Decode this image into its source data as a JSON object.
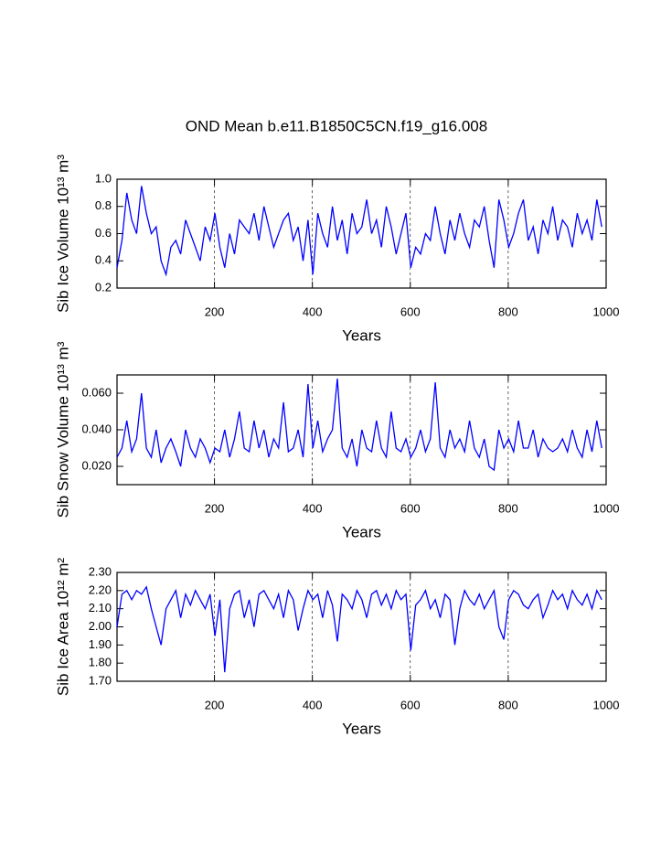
{
  "chart_data": [
    {
      "type": "line",
      "title": "OND Mean b.e11.B1850C5CN.f19_g16.008",
      "x_label": "Years",
      "y_label": "Sib Ice Volume 10¹³ m³",
      "xlim": [
        1,
        1000
      ],
      "xticks": [
        200,
        400,
        600,
        800,
        1000
      ],
      "ylim": [
        0.2,
        1.0
      ],
      "yticks": [
        0.2,
        0.4,
        0.6,
        0.8,
        {
          "value": 1.0,
          "label": "1.0"
        }
      ],
      "grid": true,
      "x": [
        1,
        11,
        21,
        31,
        41,
        51,
        61,
        71,
        81,
        91,
        101,
        111,
        121,
        131,
        141,
        151,
        161,
        171,
        181,
        191,
        201,
        211,
        221,
        231,
        241,
        251,
        261,
        271,
        281,
        291,
        301,
        311,
        321,
        331,
        341,
        351,
        361,
        371,
        381,
        391,
        401,
        411,
        421,
        431,
        441,
        451,
        461,
        471,
        481,
        491,
        501,
        511,
        521,
        531,
        541,
        551,
        561,
        571,
        581,
        591,
        601,
        611,
        621,
        631,
        641,
        651,
        661,
        671,
        681,
        691,
        701,
        711,
        721,
        731,
        741,
        751,
        761,
        771,
        781,
        791,
        801,
        811,
        821,
        831,
        841,
        851,
        861,
        871,
        881,
        891,
        901,
        911,
        921,
        931,
        941,
        951,
        961,
        971,
        981,
        991
      ],
      "series": [
        {
          "color": "#0000ff",
          "values": [
            0.35,
            0.55,
            0.9,
            0.7,
            0.6,
            0.95,
            0.75,
            0.6,
            0.65,
            0.4,
            0.3,
            0.5,
            0.55,
            0.45,
            0.7,
            0.6,
            0.5,
            0.4,
            0.65,
            0.55,
            0.75,
            0.5,
            0.35,
            0.6,
            0.45,
            0.7,
            0.65,
            0.6,
            0.75,
            0.55,
            0.8,
            0.65,
            0.5,
            0.6,
            0.7,
            0.75,
            0.55,
            0.65,
            0.4,
            0.7,
            0.3,
            0.75,
            0.6,
            0.5,
            0.8,
            0.55,
            0.7,
            0.45,
            0.75,
            0.6,
            0.65,
            0.85,
            0.6,
            0.7,
            0.5,
            0.8,
            0.65,
            0.45,
            0.6,
            0.75,
            0.35,
            0.5,
            0.45,
            0.6,
            0.55,
            0.8,
            0.6,
            0.45,
            0.7,
            0.55,
            0.75,
            0.6,
            0.5,
            0.7,
            0.65,
            0.8,
            0.55,
            0.35,
            0.85,
            0.7,
            0.5,
            0.6,
            0.75,
            0.85,
            0.55,
            0.65,
            0.45,
            0.7,
            0.6,
            0.8,
            0.55,
            0.7,
            0.65,
            0.5,
            0.75,
            0.6,
            0.7,
            0.55,
            0.85,
            0.65
          ]
        }
      ]
    },
    {
      "type": "line",
      "x_label": "Years",
      "y_label": "Sib Snow Volume 10¹³ m³",
      "xlim": [
        1,
        1000
      ],
      "xticks": [
        200,
        400,
        600,
        800,
        1000
      ],
      "ylim": [
        0.01,
        0.07
      ],
      "yticks": [
        {
          "value": 0.02,
          "label": "0.020"
        },
        {
          "value": 0.04,
          "label": "0.040"
        },
        {
          "value": 0.06,
          "label": "0.060"
        }
      ],
      "grid": true,
      "x": [
        1,
        11,
        21,
        31,
        41,
        51,
        61,
        71,
        81,
        91,
        101,
        111,
        121,
        131,
        141,
        151,
        161,
        171,
        181,
        191,
        201,
        211,
        221,
        231,
        241,
        251,
        261,
        271,
        281,
        291,
        301,
        311,
        321,
        331,
        341,
        351,
        361,
        371,
        381,
        391,
        401,
        411,
        421,
        431,
        441,
        451,
        461,
        471,
        481,
        491,
        501,
        511,
        521,
        531,
        541,
        551,
        561,
        571,
        581,
        591,
        601,
        611,
        621,
        631,
        641,
        651,
        661,
        671,
        681,
        691,
        701,
        711,
        721,
        731,
        741,
        751,
        761,
        771,
        781,
        791,
        801,
        811,
        821,
        831,
        841,
        851,
        861,
        871,
        881,
        891,
        901,
        911,
        921,
        931,
        941,
        951,
        961,
        971,
        981,
        991
      ],
      "series": [
        {
          "color": "#0000ff",
          "values": [
            0.025,
            0.03,
            0.045,
            0.028,
            0.035,
            0.06,
            0.03,
            0.025,
            0.04,
            0.022,
            0.03,
            0.035,
            0.028,
            0.02,
            0.04,
            0.03,
            0.025,
            0.035,
            0.03,
            0.022,
            0.03,
            0.028,
            0.04,
            0.025,
            0.035,
            0.05,
            0.03,
            0.028,
            0.045,
            0.03,
            0.04,
            0.025,
            0.035,
            0.03,
            0.055,
            0.028,
            0.03,
            0.04,
            0.025,
            0.065,
            0.03,
            0.045,
            0.028,
            0.035,
            0.04,
            0.068,
            0.03,
            0.025,
            0.035,
            0.02,
            0.04,
            0.03,
            0.028,
            0.045,
            0.03,
            0.025,
            0.05,
            0.03,
            0.028,
            0.035,
            0.025,
            0.03,
            0.04,
            0.028,
            0.035,
            0.066,
            0.03,
            0.025,
            0.04,
            0.03,
            0.035,
            0.028,
            0.045,
            0.03,
            0.025,
            0.035,
            0.02,
            0.018,
            0.04,
            0.03,
            0.035,
            0.028,
            0.045,
            0.03,
            0.03,
            0.04,
            0.025,
            0.035,
            0.03,
            0.028,
            0.03,
            0.035,
            0.028,
            0.04,
            0.03,
            0.025,
            0.04,
            0.028,
            0.045,
            0.03
          ]
        }
      ]
    },
    {
      "type": "line",
      "x_label": "Years",
      "y_label": "Sib Ice Area 10¹² m²",
      "xlim": [
        1,
        1000
      ],
      "xticks": [
        200,
        400,
        600,
        800,
        1000
      ],
      "ylim": [
        1.7,
        2.3
      ],
      "yticks": [
        {
          "value": 1.7,
          "label": "1.70"
        },
        {
          "value": 1.8,
          "label": "1.80"
        },
        {
          "value": 1.9,
          "label": "1.90"
        },
        {
          "value": 2.0,
          "label": "2.00"
        },
        {
          "value": 2.1,
          "label": "2.10"
        },
        {
          "value": 2.2,
          "label": "2.20"
        },
        {
          "value": 2.3,
          "label": "2.30"
        }
      ],
      "grid": true,
      "x": [
        1,
        11,
        21,
        31,
        41,
        51,
        61,
        71,
        81,
        91,
        101,
        111,
        121,
        131,
        141,
        151,
        161,
        171,
        181,
        191,
        201,
        211,
        221,
        231,
        241,
        251,
        261,
        271,
        281,
        291,
        301,
        311,
        321,
        331,
        341,
        351,
        361,
        371,
        381,
        391,
        401,
        411,
        421,
        431,
        441,
        451,
        461,
        471,
        481,
        491,
        501,
        511,
        521,
        531,
        541,
        551,
        561,
        571,
        581,
        591,
        601,
        611,
        621,
        631,
        641,
        651,
        661,
        671,
        681,
        691,
        701,
        711,
        721,
        731,
        741,
        751,
        761,
        771,
        781,
        791,
        801,
        811,
        821,
        831,
        841,
        851,
        861,
        871,
        881,
        891,
        901,
        911,
        921,
        931,
        941,
        951,
        961,
        971,
        981,
        991
      ],
      "series": [
        {
          "color": "#0000ff",
          "values": [
            2.0,
            2.18,
            2.2,
            2.15,
            2.2,
            2.18,
            2.22,
            2.1,
            2.0,
            1.9,
            2.1,
            2.15,
            2.2,
            2.05,
            2.18,
            2.12,
            2.2,
            2.15,
            2.1,
            2.18,
            1.95,
            2.15,
            1.75,
            2.1,
            2.18,
            2.2,
            2.05,
            2.15,
            2.0,
            2.18,
            2.2,
            2.15,
            2.1,
            2.18,
            2.05,
            2.2,
            2.15,
            1.98,
            2.1,
            2.2,
            2.15,
            2.18,
            2.05,
            2.2,
            2.12,
            1.92,
            2.18,
            2.15,
            2.1,
            2.2,
            2.15,
            2.05,
            2.18,
            2.2,
            2.12,
            2.18,
            2.1,
            2.2,
            2.15,
            2.18,
            1.87,
            2.12,
            2.15,
            2.2,
            2.1,
            2.15,
            2.05,
            2.18,
            2.15,
            1.9,
            2.1,
            2.2,
            2.15,
            2.12,
            2.18,
            2.1,
            2.15,
            2.2,
            2.0,
            1.93,
            2.15,
            2.2,
            2.18,
            2.12,
            2.1,
            2.15,
            2.18,
            2.05,
            2.12,
            2.2,
            2.15,
            2.18,
            2.1,
            2.2,
            2.15,
            2.12,
            2.18,
            2.1,
            2.2,
            2.15
          ]
        }
      ]
    }
  ]
}
